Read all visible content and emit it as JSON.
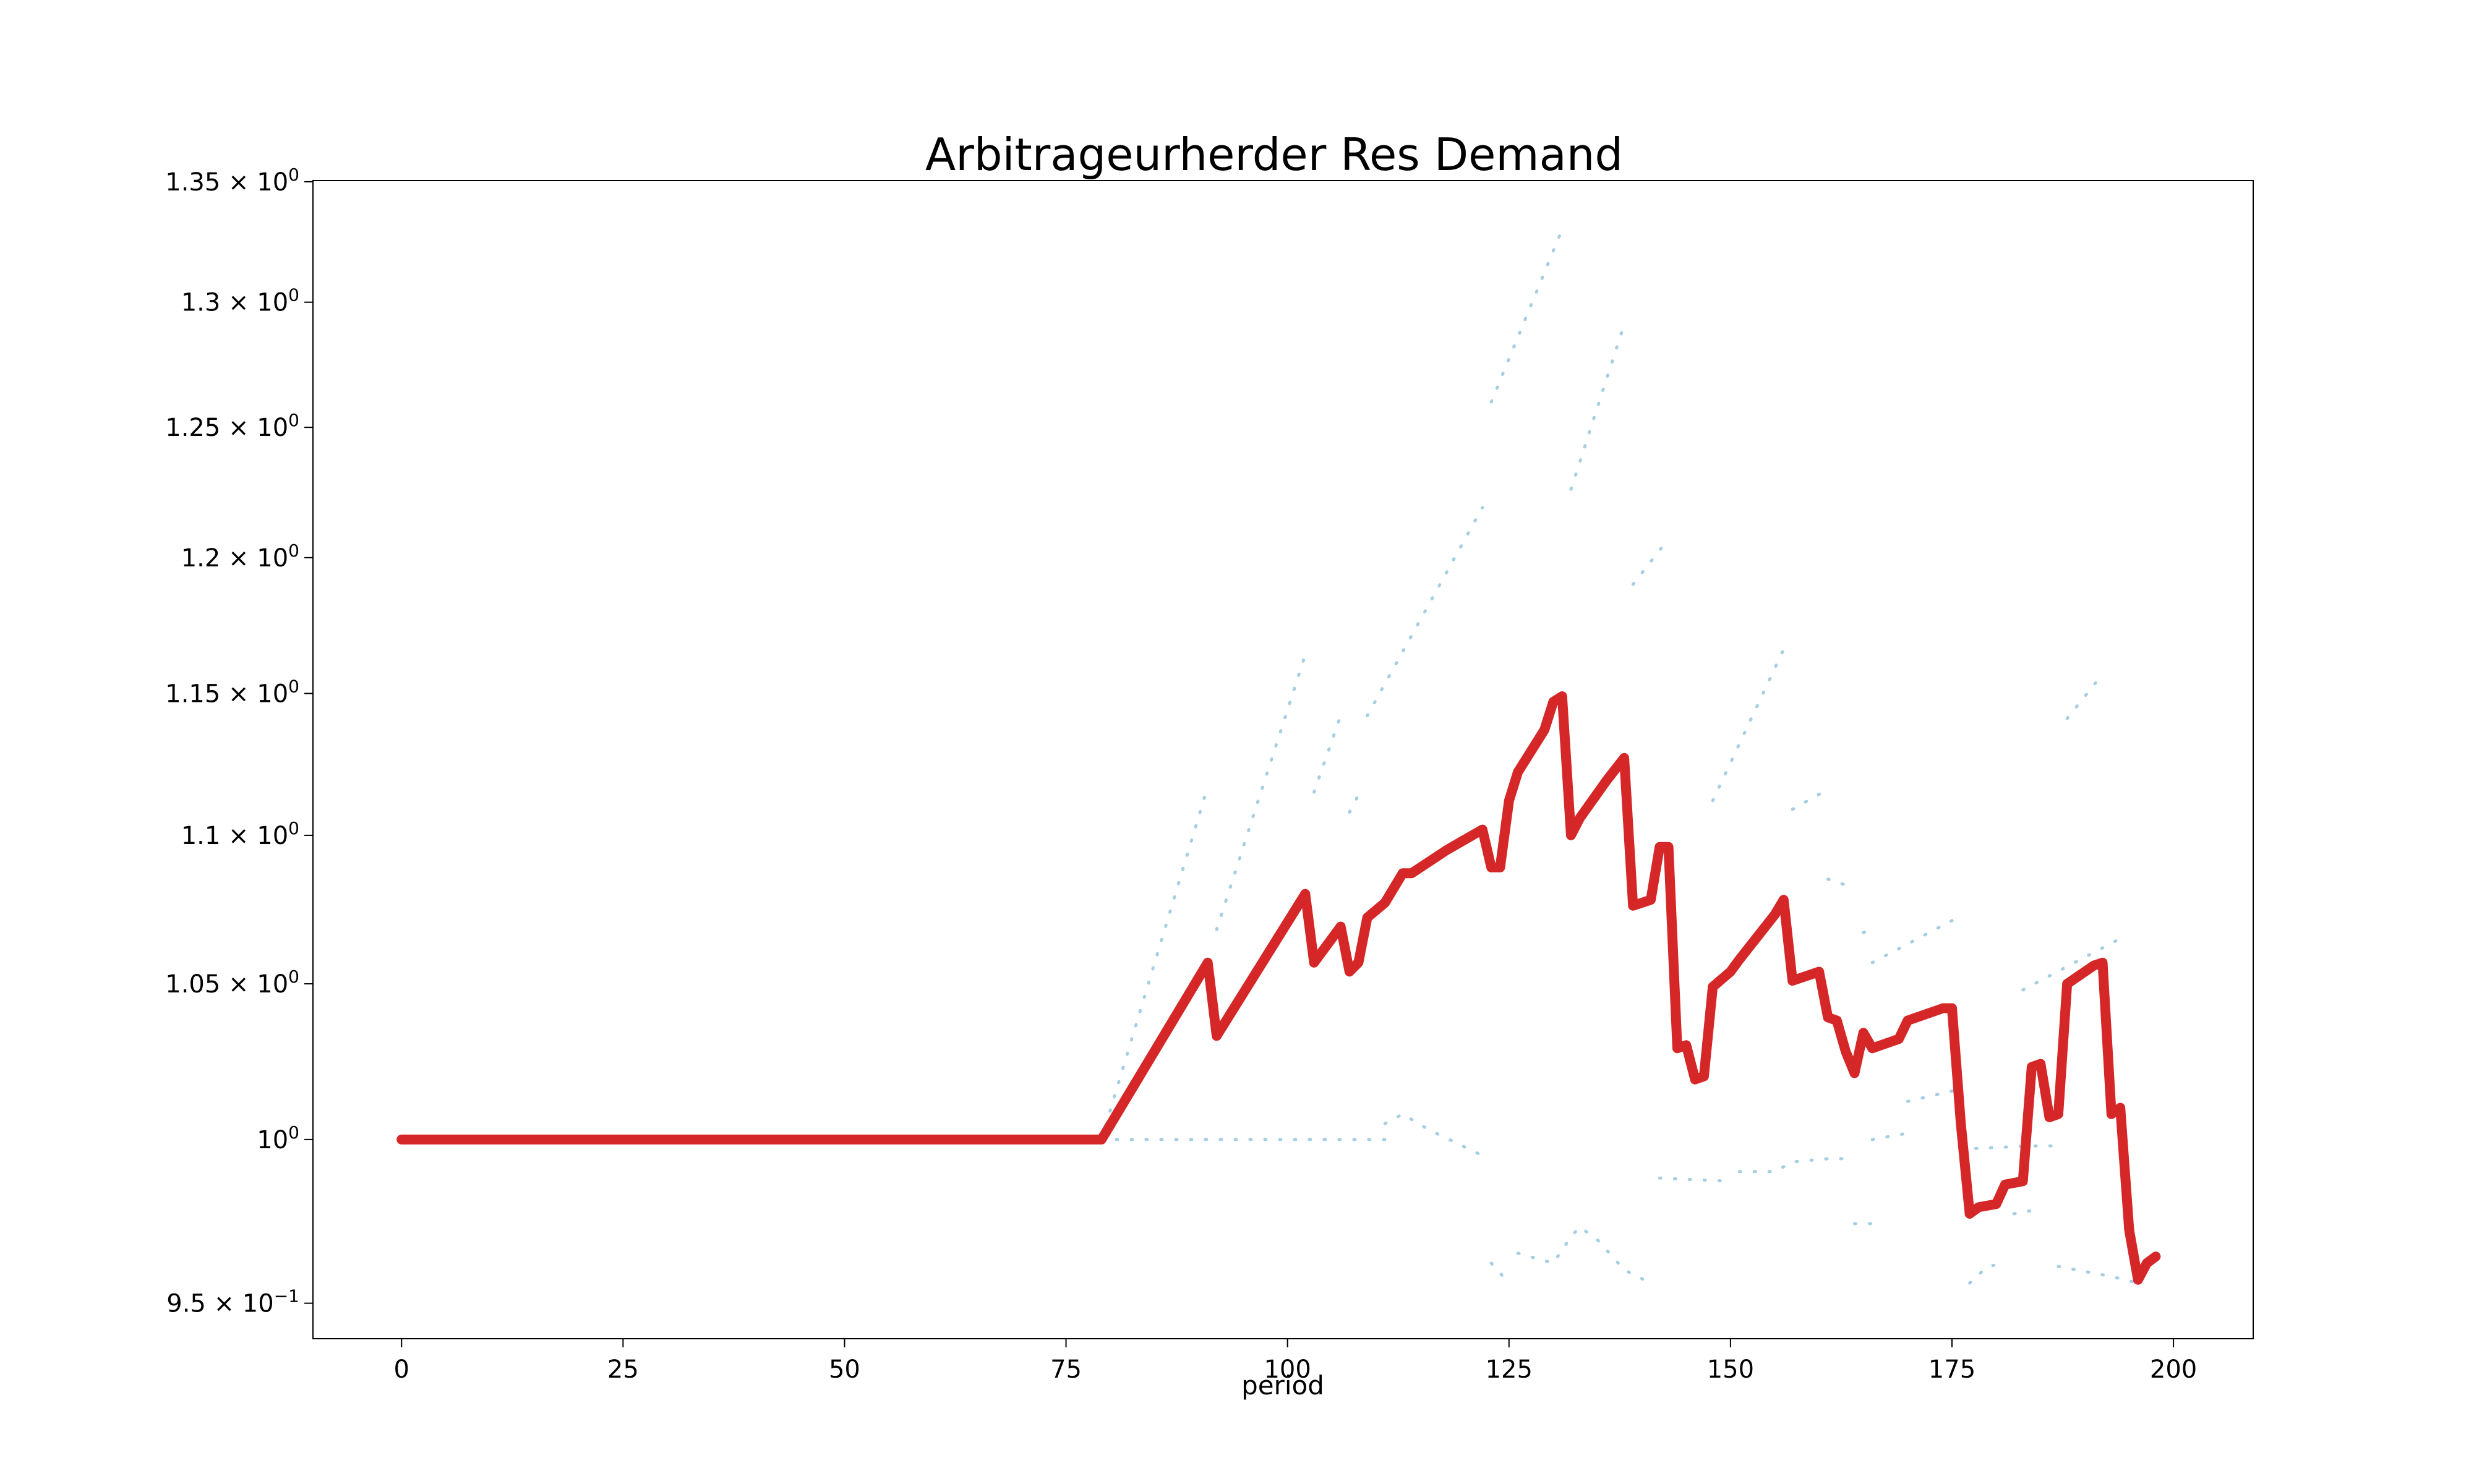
{
  "chart_data": {
    "type": "line",
    "title": "Arbitrageurherder Res Demand",
    "xlabel": "period",
    "ylabel": "",
    "y_scale": "log",
    "xlim": [
      -10,
      209
    ],
    "ylim": [
      0.9395,
      1.3505
    ],
    "x_ticks": [
      0,
      25,
      50,
      75,
      100,
      125,
      150,
      175,
      200
    ],
    "x_tick_labels": [
      "0",
      "25",
      "50",
      "75",
      "100",
      "125",
      "150",
      "175",
      "200"
    ],
    "y_ticks": [
      {
        "value": 0.95,
        "mantissa": "9.5",
        "exponent": "−1"
      },
      {
        "value": 1.0,
        "mantissa": "",
        "exponent": "0"
      },
      {
        "value": 1.05,
        "mantissa": "1.05",
        "exponent": "0"
      },
      {
        "value": 1.1,
        "mantissa": "1.1",
        "exponent": "0"
      },
      {
        "value": 1.15,
        "mantissa": "1.15",
        "exponent": "0"
      },
      {
        "value": 1.2,
        "mantissa": "1.2",
        "exponent": "0"
      },
      {
        "value": 1.25,
        "mantissa": "1.25",
        "exponent": "0"
      },
      {
        "value": 1.3,
        "mantissa": "1.3",
        "exponent": "0"
      },
      {
        "value": 1.35,
        "mantissa": "1.35",
        "exponent": "0"
      }
    ],
    "grid": false,
    "colors": {
      "main": "#d62728",
      "background_series": "#a6cee3"
    },
    "series": [
      {
        "style": "solid",
        "points": [
          [
            0,
            1.0
          ],
          [
            79,
            1.0
          ],
          [
            91,
            1.057
          ],
          [
            92,
            1.033
          ],
          [
            102,
            1.08
          ],
          [
            103,
            1.057
          ],
          [
            106,
            1.069
          ],
          [
            107,
            1.054
          ],
          [
            108,
            1.057
          ],
          [
            109,
            1.072
          ],
          [
            111,
            1.077
          ],
          [
            113,
            1.087
          ],
          [
            114,
            1.087
          ],
          [
            118,
            1.095
          ],
          [
            122,
            1.102
          ],
          [
            123,
            1.089
          ],
          [
            124,
            1.089
          ],
          [
            125,
            1.112
          ],
          [
            126,
            1.122
          ],
          [
            129,
            1.137
          ],
          [
            130,
            1.147
          ],
          [
            131,
            1.149
          ],
          [
            132,
            1.1
          ],
          [
            133,
            1.106
          ],
          [
            136,
            1.119
          ],
          [
            138,
            1.127
          ],
          [
            139,
            1.076
          ],
          [
            141,
            1.078
          ],
          [
            142,
            1.096
          ],
          [
            143,
            1.096
          ],
          [
            144,
            1.029
          ],
          [
            145,
            1.03
          ],
          [
            146,
            1.019
          ],
          [
            147,
            1.02
          ],
          [
            148,
            1.049
          ],
          [
            150,
            1.054
          ],
          [
            151,
            1.058
          ],
          [
            155,
            1.073
          ],
          [
            156,
            1.078
          ],
          [
            157,
            1.051
          ],
          [
            160,
            1.054
          ],
          [
            161,
            1.039
          ],
          [
            162,
            1.038
          ],
          [
            163,
            1.028
          ],
          [
            164,
            1.021
          ],
          [
            165,
            1.034
          ],
          [
            166,
            1.029
          ],
          [
            169,
            1.032
          ],
          [
            170,
            1.038
          ],
          [
            174,
            1.042
          ],
          [
            175,
            1.042
          ],
          [
            176,
            1.005
          ],
          [
            177,
            0.977
          ],
          [
            178,
            0.979
          ],
          [
            180,
            0.98
          ],
          [
            181,
            0.986
          ],
          [
            183,
            0.987
          ],
          [
            184,
            1.023
          ],
          [
            185,
            1.024
          ],
          [
            186,
            1.007
          ],
          [
            187,
            1.008
          ],
          [
            188,
            1.05
          ],
          [
            191,
            1.056
          ],
          [
            192,
            1.057
          ],
          [
            193,
            1.008
          ],
          [
            194,
            1.01
          ],
          [
            195,
            0.972
          ],
          [
            196,
            0.957
          ],
          [
            197,
            0.962
          ],
          [
            198,
            0.964
          ]
        ]
      },
      {
        "style": "dotted",
        "points": [
          [
            79,
            1.0
          ],
          [
            91,
            1.117
          ]
        ]
      },
      {
        "style": "dotted",
        "points": [
          [
            92,
            1.068
          ],
          [
            102,
            1.164
          ]
        ]
      },
      {
        "style": "dotted",
        "points": [
          [
            103,
            1.115
          ],
          [
            106,
            1.142
          ]
        ]
      },
      {
        "style": "dotted",
        "points": [
          [
            107,
            1.108
          ],
          [
            108,
            1.114
          ]
        ]
      },
      {
        "style": "dotted",
        "points": [
          [
            109,
            1.142
          ],
          [
            122,
            1.219
          ]
        ]
      },
      {
        "style": "dotted",
        "points": [
          [
            123,
            1.26
          ],
          [
            131,
            1.33
          ]
        ]
      },
      {
        "style": "dotted",
        "points": [
          [
            132,
            1.226
          ],
          [
            138,
            1.291
          ]
        ]
      },
      {
        "style": "dotted",
        "points": [
          [
            139,
            1.19
          ],
          [
            143,
            1.207
          ]
        ]
      },
      {
        "style": "dotted",
        "points": [
          [
            143,
            1.07
          ],
          [
            144,
            1.07
          ]
        ]
      },
      {
        "style": "dotted",
        "points": [
          [
            148,
            1.112
          ],
          [
            156,
            1.166
          ]
        ]
      },
      {
        "style": "dotted",
        "points": [
          [
            157,
            1.109
          ],
          [
            161,
            1.116
          ]
        ]
      },
      {
        "style": "dotted",
        "points": [
          [
            161,
            1.085
          ],
          [
            163,
            1.083
          ]
        ]
      },
      {
        "style": "dotted",
        "points": [
          [
            165,
            1.067
          ],
          [
            166,
            1.068
          ]
        ]
      },
      {
        "style": "dotted",
        "points": [
          [
            166,
            1.057
          ],
          [
            175,
            1.071
          ]
        ]
      },
      {
        "style": "dotted",
        "points": [
          [
            188,
            1.141
          ],
          [
            192,
            1.157
          ]
        ]
      },
      {
        "style": "dotted",
        "points": [
          [
            183,
            1.048
          ],
          [
            194,
            1.065
          ]
        ]
      },
      {
        "style": "dotted",
        "points": [
          [
            79,
            1.0
          ],
          [
            111,
            1.0
          ]
        ]
      },
      {
        "style": "dotted",
        "points": [
          [
            111,
            1.005
          ],
          [
            113,
            1.008
          ],
          [
            116,
            1.003
          ],
          [
            122,
            0.995
          ]
        ]
      },
      {
        "style": "dotted",
        "points": [
          [
            123,
            0.962
          ],
          [
            125,
            0.956
          ]
        ]
      },
      {
        "style": "dotted",
        "points": [
          [
            126,
            0.965
          ],
          [
            130,
            0.962
          ],
          [
            132,
            0.97
          ],
          [
            133,
            0.973
          ],
          [
            135,
            0.969
          ],
          [
            138,
            0.96
          ],
          [
            141,
            0.956
          ]
        ]
      },
      {
        "style": "dotted",
        "points": [
          [
            142,
            0.988
          ],
          [
            150,
            0.987
          ]
        ]
      },
      {
        "style": "dotted",
        "points": [
          [
            151,
            0.99
          ],
          [
            155,
            0.99
          ],
          [
            157,
            0.993
          ],
          [
            161,
            0.994
          ],
          [
            164,
            0.994
          ]
        ]
      },
      {
        "style": "dotted",
        "points": [
          [
            164,
            0.974
          ],
          [
            166,
            0.974
          ]
        ]
      },
      {
        "style": "dotted",
        "points": [
          [
            166,
            1.0
          ],
          [
            170,
            1.002
          ]
        ]
      },
      {
        "style": "dotted",
        "points": [
          [
            170,
            1.012
          ],
          [
            176,
            1.016
          ]
        ]
      },
      {
        "style": "dotted",
        "points": [
          [
            176,
            0.997
          ],
          [
            184,
            0.998
          ],
          [
            187,
            0.998
          ]
        ]
      },
      {
        "style": "dotted",
        "points": [
          [
            177,
            0.956
          ],
          [
            179,
            0.961
          ],
          [
            181,
            0.962
          ]
        ]
      },
      {
        "style": "dotted",
        "points": [
          [
            182,
            0.977
          ],
          [
            184,
            0.978
          ]
        ]
      },
      {
        "style": "dotted",
        "points": [
          [
            187,
            0.961
          ],
          [
            193,
            0.958
          ],
          [
            196,
            0.956
          ]
        ]
      }
    ]
  }
}
